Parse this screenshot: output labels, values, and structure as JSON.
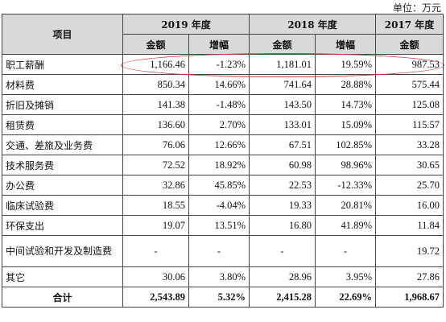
{
  "unit_label": "单位：万元",
  "header": {
    "item_label": "项目",
    "years": [
      "2019 年度",
      "2018 年度",
      "2017 年度"
    ],
    "amount_label": "金额",
    "change_label": "增幅"
  },
  "rows": [
    {
      "item": "职工薪酬",
      "a2019": "1,166.46",
      "c2019": "-1.23%",
      "a2018": "1,181.01",
      "c2018": "19.59%",
      "a2017": "987.53"
    },
    {
      "item": "材料费",
      "a2019": "850.34",
      "c2019": "14.66%",
      "a2018": "741.64",
      "c2018": "28.88%",
      "a2017": "575.44"
    },
    {
      "item": "折旧及摊销",
      "a2019": "141.38",
      "c2019": "-1.48%",
      "a2018": "143.50",
      "c2018": "14.73%",
      "a2017": "125.08"
    },
    {
      "item": "租赁费",
      "a2019": "136.60",
      "c2019": "2.70%",
      "a2018": "133.01",
      "c2018": "15.09%",
      "a2017": "115.57"
    },
    {
      "item": "交通、差旅及业务费",
      "a2019": "76.06",
      "c2019": "12.66%",
      "a2018": "67.51",
      "c2018": "102.85%",
      "a2017": "33.28"
    },
    {
      "item": "技术服务费",
      "a2019": "72.52",
      "c2019": "18.92%",
      "a2018": "60.98",
      "c2018": "98.96%",
      "a2017": "30.65"
    },
    {
      "item": "办公费",
      "a2019": "32.86",
      "c2019": "45.85%",
      "a2018": "22.53",
      "c2018": "-12.33%",
      "a2017": "25.70"
    },
    {
      "item": "临床试验费",
      "a2019": "18.55",
      "c2019": "-4.04%",
      "a2018": "19.33",
      "c2018": "20.81%",
      "a2017": "16.00"
    },
    {
      "item": "环保支出",
      "a2019": "19.07",
      "c2019": "13.51%",
      "a2018": "16.80",
      "c2018": "41.89%",
      "a2017": "11.84"
    },
    {
      "item": "中间试验和开发及制造费",
      "a2019": "-",
      "c2019": "-",
      "a2018": "-",
      "c2018": "-",
      "a2017": "19.72"
    },
    {
      "item": "其它",
      "a2019": "30.06",
      "c2019": "3.80%",
      "a2018": "28.96",
      "c2018": "3.95%",
      "a2017": "27.86"
    }
  ],
  "total": {
    "item": "合计",
    "a2019": "2,543.89",
    "c2019": "5.32%",
    "a2018": "2,415.28",
    "c2018": "22.69%",
    "a2017": "1,968.67"
  },
  "colors": {
    "header_bg": "#d9d9d9",
    "highlight_oval": "#d23b3b",
    "border": "#444444"
  }
}
